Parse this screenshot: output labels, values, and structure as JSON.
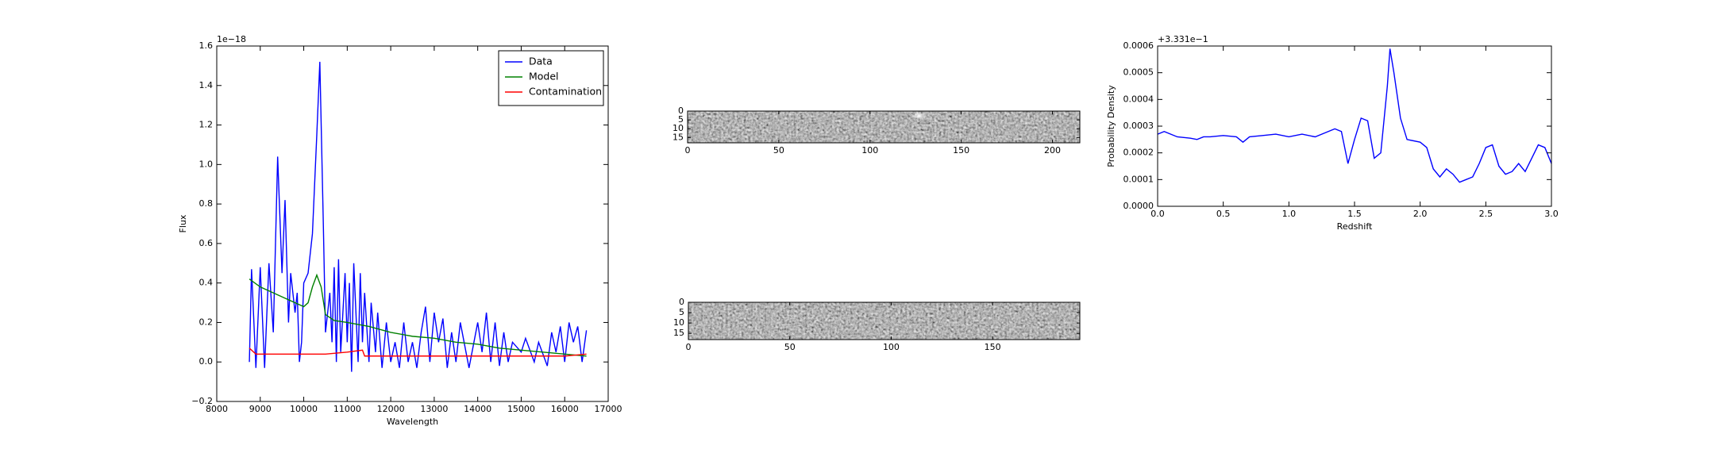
{
  "chart_data": [
    {
      "type": "line",
      "xlabel": "Wavelength",
      "ylabel": "Flux",
      "annotation": "1e−18",
      "xlim": [
        8000,
        17000
      ],
      "xticks": [
        8000,
        9000,
        10000,
        11000,
        12000,
        13000,
        14000,
        15000,
        16000,
        17000
      ],
      "ylim": [
        -0.2,
        1.6
      ],
      "yticks": [
        {
          "value": -0.2,
          "label": "−0.2"
        },
        {
          "value": 0,
          "label": "0.0"
        },
        0.2,
        0.4,
        0.6,
        0.8,
        {
          "value": 1,
          "label": "1.0"
        },
        1.2,
        1.4,
        1.6
      ],
      "legend": "upper right",
      "series": [
        {
          "name": "Data",
          "color": "#0000ff",
          "x": [
            8750,
            8800,
            8900,
            9000,
            9100,
            9200,
            9300,
            9400,
            9500,
            9570,
            9650,
            9700,
            9800,
            9850,
            9900,
            9950,
            10000,
            10100,
            10200,
            10300,
            10370,
            10450,
            10500,
            10600,
            10650,
            10700,
            10750,
            10800,
            10850,
            10950,
            11000,
            11050,
            11100,
            11150,
            11250,
            11300,
            11350,
            11400,
            11500,
            11550,
            11650,
            11700,
            11800,
            11900,
            12000,
            12100,
            12200,
            12300,
            12400,
            12500,
            12600,
            12700,
            12800,
            12900,
            13000,
            13100,
            13200,
            13300,
            13400,
            13500,
            13600,
            13800,
            14000,
            14100,
            14200,
            14300,
            14400,
            14500,
            14600,
            14700,
            14800,
            15000,
            15100,
            15300,
            15400,
            15600,
            15700,
            15800,
            15900,
            16000,
            16100,
            16200,
            16300,
            16400,
            16500
          ],
          "values": [
            0.0,
            0.47,
            -0.03,
            0.48,
            -0.03,
            0.5,
            0.15,
            1.04,
            0.45,
            0.82,
            0.2,
            0.45,
            0.25,
            0.35,
            0.0,
            0.1,
            0.4,
            0.45,
            0.65,
            1.15,
            1.52,
            0.7,
            0.15,
            0.35,
            0.1,
            0.48,
            0.0,
            0.52,
            0.05,
            0.45,
            0.1,
            0.4,
            -0.05,
            0.5,
            0.0,
            0.45,
            0.1,
            0.35,
            0.0,
            0.3,
            0.05,
            0.25,
            -0.03,
            0.2,
            0.0,
            0.1,
            -0.03,
            0.2,
            0.0,
            0.1,
            -0.03,
            0.15,
            0.28,
            0.0,
            0.25,
            0.1,
            0.22,
            -0.03,
            0.15,
            0.0,
            0.2,
            -0.03,
            0.2,
            0.05,
            0.25,
            0.0,
            0.2,
            -0.02,
            0.15,
            0.0,
            0.1,
            0.05,
            0.12,
            0.0,
            0.1,
            -0.02,
            0.15,
            0.05,
            0.18,
            0.0,
            0.2,
            0.1,
            0.18,
            0.0,
            0.16
          ]
        },
        {
          "name": "Model",
          "color": "#008000",
          "x": [
            8750,
            9000,
            9500,
            9800,
            10000,
            10100,
            10200,
            10300,
            10400,
            10500,
            10700,
            11000,
            11500,
            12000,
            12500,
            13000,
            13500,
            14000,
            14500,
            15000,
            15500,
            16000,
            16500
          ],
          "values": [
            0.42,
            0.38,
            0.33,
            0.3,
            0.28,
            0.3,
            0.38,
            0.44,
            0.38,
            0.24,
            0.21,
            0.2,
            0.18,
            0.15,
            0.13,
            0.12,
            0.1,
            0.09,
            0.07,
            0.06,
            0.05,
            0.04,
            0.03
          ]
        },
        {
          "name": "Contamination",
          "color": "#ff0000",
          "x": [
            8750,
            8900,
            9500,
            10000,
            10500,
            11000,
            11350,
            11400,
            12000,
            13000,
            14000,
            15000,
            16000,
            16500
          ],
          "values": [
            0.07,
            0.04,
            0.04,
            0.04,
            0.04,
            0.05,
            0.06,
            0.03,
            0.03,
            0.03,
            0.03,
            0.03,
            0.03,
            0.04
          ]
        }
      ]
    },
    {
      "type": "image",
      "xlim": [
        0,
        215
      ],
      "xticks": [
        0,
        50,
        100,
        150,
        200
      ],
      "ylim": [
        18,
        0
      ],
      "yticks": [
        0,
        5,
        10,
        15
      ]
    },
    {
      "type": "image",
      "xlim": [
        0,
        193
      ],
      "xticks": [
        0,
        50,
        100,
        150
      ],
      "ylim": [
        18,
        0
      ],
      "yticks": [
        0,
        5,
        10,
        15
      ]
    },
    {
      "type": "line",
      "xlabel": "Redshift",
      "ylabel": "Probability Density",
      "annotation": "+3.331e−1",
      "xlim": [
        0,
        3
      ],
      "xticks": [
        {
          "value": 0,
          "label": "0.0"
        },
        0.5,
        {
          "value": 1,
          "label": "1.0"
        },
        1.5,
        {
          "value": 2,
          "label": "2.0"
        },
        2.5,
        {
          "value": 3,
          "label": "3.0"
        }
      ],
      "ylim": [
        0,
        0.0006
      ],
      "yticks": [
        {
          "value": 0,
          "label": "0.0000"
        },
        {
          "value": 0.0001,
          "label": "0.0001"
        },
        {
          "value": 0.0002,
          "label": "0.0002"
        },
        {
          "value": 0.0003,
          "label": "0.0003"
        },
        {
          "value": 0.0004,
          "label": "0.0004"
        },
        {
          "value": 0.0005,
          "label": "0.0005"
        },
        {
          "value": 0.0006,
          "label": "0.0006"
        }
      ],
      "series": [
        {
          "color": "#0000ff",
          "x": [
            0,
            0.05,
            0.1,
            0.15,
            0.25,
            0.3,
            0.35,
            0.4,
            0.5,
            0.6,
            0.65,
            0.7,
            0.8,
            0.9,
            1.0,
            1.1,
            1.2,
            1.3,
            1.35,
            1.4,
            1.45,
            1.5,
            1.55,
            1.6,
            1.65,
            1.7,
            1.75,
            1.77,
            1.8,
            1.85,
            1.9,
            2.0,
            2.05,
            2.1,
            2.15,
            2.2,
            2.25,
            2.3,
            2.35,
            2.4,
            2.45,
            2.5,
            2.55,
            2.6,
            2.65,
            2.7,
            2.75,
            2.8,
            2.85,
            2.9,
            2.95,
            3.0
          ],
          "values": [
            0.00027,
            0.00028,
            0.00027,
            0.00026,
            0.000255,
            0.00025,
            0.00026,
            0.00026,
            0.000265,
            0.00026,
            0.00024,
            0.00026,
            0.000265,
            0.00027,
            0.00026,
            0.00027,
            0.00026,
            0.00028,
            0.00029,
            0.00028,
            0.00016,
            0.00025,
            0.00033,
            0.00032,
            0.00018,
            0.0002,
            0.00045,
            0.00059,
            0.0005,
            0.00033,
            0.00025,
            0.00024,
            0.00022,
            0.00014,
            0.00011,
            0.00014,
            0.00012,
            9e-05,
            0.0001,
            0.00011,
            0.00016,
            0.00022,
            0.00023,
            0.00015,
            0.00012,
            0.00013,
            0.00016,
            0.00013,
            0.00018,
            0.00023,
            0.00022,
            0.00016
          ]
        }
      ]
    }
  ]
}
